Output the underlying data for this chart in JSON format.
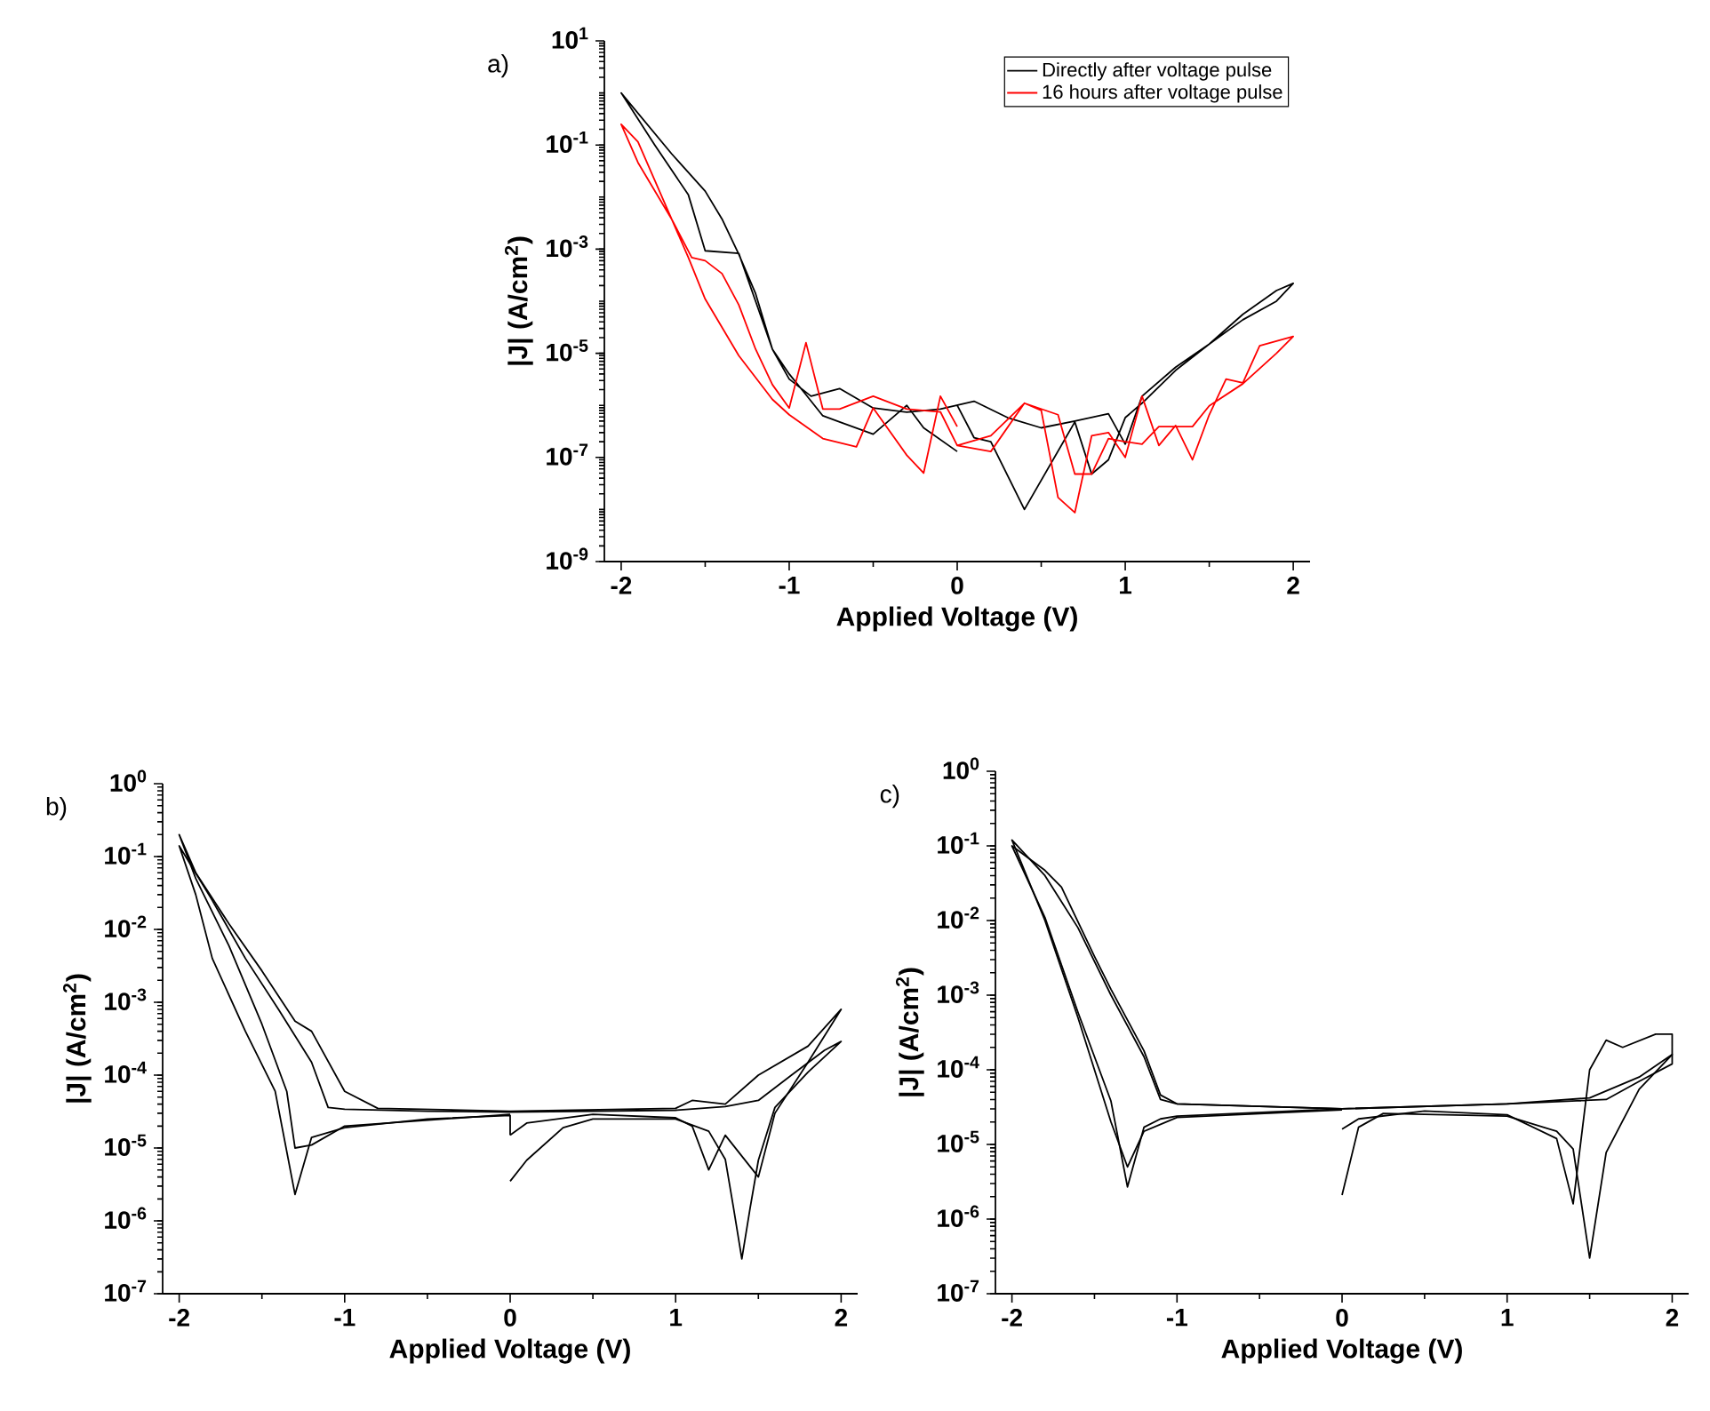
{
  "chart_data": [
    {
      "type": "line",
      "xlabel": "Applied Voltage (V)",
      "ylabel": "|J| (A/cm$^{2}$)",
      "annotations": [
        "a)"
      ],
      "log": "y",
      "legend": "top right",
      "line_style": "solid",
      "xlim": [
        -2.1,
        2.1
      ],
      "ylim": [
        1e-09,
        10
      ],
      "xticks": [
        -2,
        -1,
        0,
        1,
        2
      ],
      "yticks": [
        {
          "value": 10,
          "label": "10$^{1}$"
        },
        {
          "value": 0.1,
          "label": "10$^{-1}$"
        },
        {
          "value": 0.001,
          "label": "10$^{-3}$"
        },
        {
          "value": 1e-05,
          "label": "10$^{-5}$"
        },
        {
          "value": 1e-07,
          "label": "10$^{-7}$"
        },
        {
          "value": 1e-09,
          "label": "10$^{-9}$"
        }
      ],
      "series": [
        {
          "name": "Directly after voltage pulse",
          "color": "#000000",
          "x": [
            0,
            -0.2,
            -0.3,
            -0.5,
            -0.7,
            -0.8,
            -0.9,
            -1.0,
            -1.1,
            -1.2,
            -1.3,
            -1.4,
            -1.5,
            -1.7,
            -2.0,
            -1.8,
            -1.6,
            -1.5,
            -1.3,
            -1.2,
            -1.1,
            -1.0,
            -0.87,
            -0.7,
            -0.5,
            -0.3,
            -0.1,
            0.1,
            0.3,
            0.5,
            0.7,
            0.9,
            1.0,
            1.1,
            1.3,
            1.5,
            1.7,
            1.9,
            2.0,
            1.9,
            1.7,
            1.5,
            1.3,
            1.1,
            1.0,
            0.9,
            0.8,
            0.7,
            0.4,
            0.2,
            0.1,
            0
          ],
          "values": [
            1.3e-07,
            3.7e-07,
            1e-06,
            2.8e-07,
            4.8e-07,
            6.3e-07,
            1.6e-06,
            4e-06,
            1.2e-05,
            0.00014,
            0.0008,
            0.0038,
            0.013,
            0.068,
            1.0,
            0.1,
            0.011,
            0.00093,
            0.00083,
            0.0001,
            1.2e-05,
            3.2e-06,
            1.5e-06,
            2.1e-06,
            8.9e-07,
            7.4e-07,
            8.5e-07,
            1.2e-06,
            5.8e-07,
            3.7e-07,
            5e-07,
            6.9e-07,
            1.8e-07,
            1.5e-06,
            5.4e-06,
            1.5e-05,
            4.4e-05,
            0.0001,
            0.00022,
            0.00016,
            5.6e-05,
            1.5e-05,
            4.7e-06,
            1.1e-06,
            5.8e-07,
            9e-08,
            4.8e-08,
            4.8e-07,
            1e-08,
            2e-07,
            2.4e-07,
            1e-06
          ]
        },
        {
          "name": "16 hours after voltage pulse",
          "color": "#ff0000",
          "x": [
            0,
            -0.1,
            -0.2,
            -0.3,
            -0.5,
            -0.6,
            -0.8,
            -1.0,
            -1.1,
            -1.3,
            -1.5,
            -1.6,
            -1.7,
            -1.9,
            -2.0,
            -1.9,
            -1.7,
            -1.58,
            -1.5,
            -1.4,
            -1.3,
            -1.2,
            -1.1,
            -1.0,
            -0.9,
            -0.8,
            -0.7,
            -0.5,
            -0.3,
            -0.1,
            0,
            0.2,
            0.4,
            0.5,
            0.6,
            0.7,
            0.8,
            0.9,
            1.0,
            1.1,
            1.2,
            1.3,
            1.4,
            1.5,
            1.6,
            1.7,
            1.8,
            2.0,
            1.9,
            1.7,
            1.5,
            1.4,
            1.2,
            1.1,
            1.0,
            0.9,
            0.8,
            0.7,
            0.6,
            0.4,
            0.2,
            0
          ],
          "values": [
            3.9e-07,
            1.5e-06,
            5e-08,
            1.1e-07,
            8.9e-07,
            1.6e-07,
            2.3e-07,
            6.6e-07,
            1.3e-06,
            9e-06,
            0.00011,
            0.00069,
            0.0038,
            0.046,
            0.25,
            0.115,
            0.0038,
            0.00069,
            0.0006,
            0.00034,
            8.5e-05,
            1.2e-05,
            2.5e-06,
            8.9e-07,
            1.6e-05,
            8.5e-07,
            8.5e-07,
            1.5e-06,
            8.5e-07,
            7.5e-07,
            1.7e-07,
            2.6e-07,
            1.1e-06,
            8e-07,
            1.7e-08,
            8.7e-09,
            2.6e-07,
            3e-07,
            1e-07,
            1.5e-06,
            1.7e-07,
            4.1e-07,
            9e-08,
            6.6e-07,
            3.2e-06,
            2.7e-06,
            1.4e-05,
            2.1e-05,
            1e-05,
            2.6e-06,
            9.8e-07,
            3.9e-07,
            3.9e-07,
            1.8e-07,
            2e-07,
            2.3e-07,
            4.8e-08,
            4.8e-08,
            6.6e-07,
            1.1e-06,
            1.3e-07,
            1.7e-07
          ]
        }
      ]
    },
    {
      "type": "line",
      "xlabel": "Applied Voltage (V)",
      "ylabel": "|J| (A/cm$^{2}$)",
      "annotations": [
        "b)"
      ],
      "log": "y",
      "line_style": "solid",
      "xlim": [
        -2.1,
        2.1
      ],
      "ylim": [
        1e-07,
        1
      ],
      "xticks": [
        -2,
        -1,
        0,
        1,
        2
      ],
      "yticks": [
        {
          "value": 1,
          "label": "10$^{0}$"
        },
        {
          "value": 0.1,
          "label": "10$^{-1}$"
        },
        {
          "value": 0.01,
          "label": "10$^{-2}$"
        },
        {
          "value": 0.001,
          "label": "10$^{-3}$"
        },
        {
          "value": 0.0001,
          "label": "10$^{-4}$"
        },
        {
          "value": 1e-05,
          "label": "10$^{-5}$"
        },
        {
          "value": 1e-06,
          "label": "10$^{-6}$"
        },
        {
          "value": 1e-07,
          "label": "10$^{-7}$"
        }
      ],
      "series": [
        {
          "color": "#000000",
          "x": [
            0,
            0.1,
            0.32,
            0.5,
            1.0,
            1.2,
            1.3,
            1.35,
            1.4,
            1.45,
            1.5,
            1.6,
            1.8,
            2.0,
            1.9,
            1.7,
            1.5,
            1.3,
            1.0,
            0,
            -0.5,
            -1.0,
            -1.1,
            -1.2,
            -1.4,
            -1.6,
            -1.8,
            -2.0,
            -1.9,
            -1.8,
            -1.6,
            -1.42,
            -1.3,
            -1.2,
            -1.0,
            -0.5,
            0,
            0
          ],
          "values": [
            3.5e-06,
            6.8e-06,
            1.9e-05,
            2.5e-05,
            2.5e-05,
            1.7e-05,
            7e-06,
            1.5e-06,
            3e-07,
            1.5e-06,
            6.8e-06,
            3.6e-05,
            0.00011,
            0.00029,
            0.00022,
            0.0001,
            4.5e-05,
            3.7e-05,
            3.3e-05,
            3.1e-05,
            3.2e-05,
            3.4e-05,
            3.6e-05,
            0.00015,
            0.0008,
            0.004,
            0.025,
            0.14,
            0.03,
            0.004,
            0.0004,
            6e-05,
            2.3e-06,
            1.4e-05,
            1.9e-05,
            2.5e-05,
            2.8e-05,
            1.5e-05
          ]
        },
        {
          "color": "#000000",
          "x": [
            0,
            0.1,
            0.5,
            1.0,
            1.1,
            1.2,
            1.3,
            1.5,
            1.6,
            1.8,
            2.0,
            1.8,
            1.5,
            1.3,
            1.1,
            1.0,
            0,
            -0.8,
            -1.0,
            -1.2,
            -1.3,
            -1.5,
            -1.7,
            -1.9,
            -2.0,
            -1.9,
            -1.7,
            -1.5,
            -1.35,
            -1.3,
            -1.2,
            -1.0,
            0
          ],
          "values": [
            1.5e-05,
            2.2e-05,
            2.9e-05,
            2.6e-05,
            2e-05,
            5e-06,
            1.5e-05,
            4e-06,
            3e-05,
            0.00015,
            0.0008,
            0.00025,
            0.0001,
            4e-05,
            4.5e-05,
            3.5e-05,
            3.2e-05,
            3.5e-05,
            6e-05,
            0.0004,
            0.00055,
            0.0027,
            0.012,
            0.06,
            0.2,
            0.05,
            0.006,
            0.0005,
            6e-05,
            1e-05,
            1.1e-05,
            2e-05,
            2.9e-05
          ]
        }
      ]
    },
    {
      "type": "line",
      "xlabel": "Applied Voltage (V)",
      "ylabel": "|J| (A/cm$^{2}$)",
      "annotations": [
        "c)"
      ],
      "log": "y",
      "line_style": "solid",
      "xlim": [
        -2.1,
        2.1
      ],
      "ylim": [
        1e-07,
        1
      ],
      "xticks": [
        -2,
        -1,
        0,
        1,
        2
      ],
      "yticks": [
        {
          "value": 1,
          "label": "10$^{0}$"
        },
        {
          "value": 0.1,
          "label": "10$^{-1}$"
        },
        {
          "value": 0.01,
          "label": "10$^{-2}$"
        },
        {
          "value": 0.001,
          "label": "10$^{-3}$"
        },
        {
          "value": 0.0001,
          "label": "10$^{-4}$"
        },
        {
          "value": 1e-05,
          "label": "10$^{-5}$"
        },
        {
          "value": 1e-06,
          "label": "10$^{-6}$"
        },
        {
          "value": 1e-07,
          "label": "10$^{-7}$"
        }
      ],
      "series": [
        {
          "color": "#000000",
          "x": [
            0,
            0.1,
            0.25,
            1.0,
            1.3,
            1.4,
            1.5,
            1.6,
            1.8,
            2.0,
            1.8,
            1.5,
            1.0,
            0,
            -1.0,
            -1.1,
            -1.2,
            -1.4,
            -1.5,
            -1.7,
            -1.8,
            -2.0,
            -1.8,
            -1.6,
            -1.4,
            -1.3,
            -1.2,
            -1.1,
            -1.0,
            0
          ],
          "values": [
            2.1e-06,
            1.7e-05,
            2.6e-05,
            2.4e-05,
            1.5e-05,
            8.7e-06,
            3e-07,
            7.8e-06,
            5.5e-05,
            0.00016,
            8e-05,
            4.2e-05,
            3.5e-05,
            3e-05,
            3.5e-05,
            4.6e-05,
            0.00018,
            0.0012,
            0.0033,
            0.028,
            0.047,
            0.1,
            0.011,
            0.00059,
            3.8e-05,
            2.7e-06,
            1.7e-05,
            2.2e-05,
            2.4e-05,
            3e-05
          ]
        },
        {
          "color": "#000000",
          "x": [
            0,
            0.1,
            0.5,
            1.0,
            1.3,
            1.4,
            1.5,
            1.6,
            1.7,
            1.9,
            2.0,
            2.0,
            1.8,
            1.6,
            1.0,
            0,
            -1.0,
            -1.1,
            -1.2,
            -1.4,
            -1.6,
            -1.8,
            -2.0,
            -1.8,
            -1.6,
            -1.4,
            -1.3,
            -1.2,
            -1.0,
            0
          ],
          "values": [
            1.6e-05,
            2.2e-05,
            2.8e-05,
            2.5e-05,
            1.2e-05,
            1.6e-06,
            0.0001,
            0.00025,
            0.0002,
            0.0003,
            0.0003,
            0.00012,
            7e-05,
            4e-05,
            3.5e-05,
            3e-05,
            3.5e-05,
            4e-05,
            0.00015,
            0.001,
            0.008,
            0.04,
            0.12,
            0.01,
            0.0005,
            2e-05,
            5e-06,
            1.5e-05,
            2.3e-05,
            2.9e-05
          ]
        }
      ]
    }
  ]
}
